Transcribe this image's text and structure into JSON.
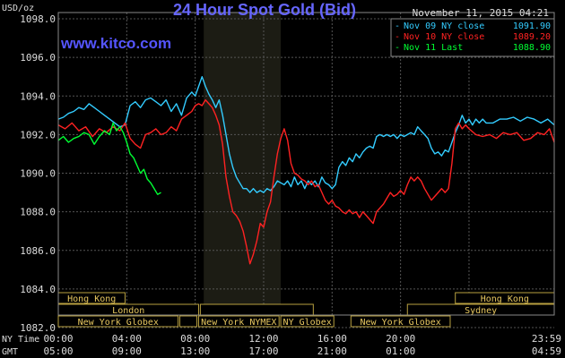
{
  "chart_data": {
    "type": "line",
    "title": "24 Hour Spot Gold (Bid)",
    "date": "November 11, 2015 04:21",
    "watermark": "www.kitco.com",
    "ylabel": "USD/oz",
    "ylim": [
      1082,
      1098
    ],
    "grid": true,
    "legend_position": "top-right",
    "y_ticks": [
      "1082.0",
      "1084.0",
      "1086.0",
      "1088.0",
      "1090.0",
      "1092.0",
      "1094.0",
      "1096.0",
      "1098.0"
    ],
    "x_range_hours": [
      0,
      28.98
    ],
    "x_axis_rows": [
      {
        "label": "NY Time",
        "ticks": [
          "00:00",
          "04:00",
          "08:00",
          "12:00",
          "16:00",
          "20:00",
          "23:59"
        ]
      },
      {
        "label": "GMT",
        "ticks": [
          "05:00",
          "09:00",
          "13:00",
          "17:00",
          "21:00",
          "01:00",
          "04:59"
        ]
      }
    ],
    "shaded_region_hours": [
      8.5,
      13
    ],
    "sessions": [
      {
        "rows": [
          {
            "name": "Hong Kong",
            "spans": [
              [
                0,
                3.9
              ]
            ]
          },
          {
            "name": "Hong Kong",
            "spans": [
              [
                23.2,
                28.98
              ]
            ]
          }
        ]
      },
      {
        "rows": [
          {
            "name": "London",
            "spans": [
              [
                0,
                8.2
              ],
              [
                8.3,
                14.9
              ]
            ]
          },
          {
            "name": "Sydney",
            "spans": [
              [
                20.4,
                28.98
              ]
            ]
          }
        ]
      },
      {
        "rows": [
          {
            "name": "New York Globex",
            "spans": [
              [
                0,
                7.0
              ],
              [
                7.1,
                8.1
              ]
            ]
          },
          {
            "name": "New York NYMEX",
            "spans": [
              [
                8.2,
                12.9
              ]
            ]
          },
          {
            "name": "NY Globex",
            "spans": [
              [
                13.0,
                16.1
              ]
            ]
          },
          {
            "name": "New York Globex",
            "spans": [
              [
                17.1,
                22.9
              ]
            ]
          }
        ]
      }
    ],
    "series": [
      {
        "name": "Nov 09 NY close",
        "value_label": "1091.90",
        "color": "#33ccff",
        "points": [
          [
            0,
            1092.8
          ],
          [
            0.3,
            1092.9
          ],
          [
            0.6,
            1093.1
          ],
          [
            0.9,
            1093.2
          ],
          [
            1.2,
            1093.4
          ],
          [
            1.5,
            1093.3
          ],
          [
            1.8,
            1093.6
          ],
          [
            2.1,
            1093.4
          ],
          [
            2.4,
            1093.2
          ],
          [
            2.7,
            1093.0
          ],
          [
            3.0,
            1092.8
          ],
          [
            3.3,
            1092.6
          ],
          [
            3.6,
            1092.4
          ],
          [
            3.9,
            1092.5
          ],
          [
            4.2,
            1093.5
          ],
          [
            4.5,
            1093.7
          ],
          [
            4.8,
            1093.4
          ],
          [
            5.1,
            1093.8
          ],
          [
            5.4,
            1093.9
          ],
          [
            5.7,
            1093.7
          ],
          [
            6.0,
            1093.5
          ],
          [
            6.3,
            1093.8
          ],
          [
            6.6,
            1093.2
          ],
          [
            6.9,
            1093.6
          ],
          [
            7.2,
            1093.0
          ],
          [
            7.5,
            1093.9
          ],
          [
            7.8,
            1094.2
          ],
          [
            8.0,
            1094.0
          ],
          [
            8.2,
            1094.5
          ],
          [
            8.4,
            1095.0
          ],
          [
            8.6,
            1094.5
          ],
          [
            8.8,
            1094.1
          ],
          [
            9.0,
            1093.8
          ],
          [
            9.2,
            1093.4
          ],
          [
            9.4,
            1093.8
          ],
          [
            9.6,
            1093.0
          ],
          [
            9.8,
            1092.0
          ],
          [
            10.0,
            1091.0
          ],
          [
            10.2,
            1090.3
          ],
          [
            10.4,
            1089.8
          ],
          [
            10.6,
            1089.5
          ],
          [
            10.8,
            1089.2
          ],
          [
            11.0,
            1089.2
          ],
          [
            11.2,
            1089.0
          ],
          [
            11.4,
            1089.2
          ],
          [
            11.6,
            1089.0
          ],
          [
            11.8,
            1089.1
          ],
          [
            12.0,
            1089.0
          ],
          [
            12.2,
            1089.2
          ],
          [
            12.4,
            1089.1
          ],
          [
            12.6,
            1089.3
          ],
          [
            12.8,
            1089.6
          ],
          [
            13.0,
            1089.5
          ],
          [
            13.2,
            1089.4
          ],
          [
            13.4,
            1089.6
          ],
          [
            13.6,
            1089.3
          ],
          [
            13.8,
            1089.8
          ],
          [
            14.0,
            1089.4
          ],
          [
            14.2,
            1089.6
          ],
          [
            14.4,
            1089.2
          ],
          [
            14.6,
            1089.6
          ],
          [
            14.8,
            1089.4
          ],
          [
            15.0,
            1089.6
          ],
          [
            15.2,
            1089.3
          ],
          [
            15.4,
            1089.8
          ],
          [
            15.6,
            1089.5
          ],
          [
            15.8,
            1089.4
          ],
          [
            16.0,
            1089.2
          ],
          [
            16.2,
            1089.4
          ],
          [
            16.4,
            1090.3
          ],
          [
            16.6,
            1090.6
          ],
          [
            16.8,
            1090.4
          ],
          [
            17.0,
            1090.8
          ],
          [
            17.2,
            1090.6
          ],
          [
            17.4,
            1091.0
          ],
          [
            17.6,
            1090.8
          ],
          [
            17.8,
            1091.1
          ],
          [
            18.0,
            1091.3
          ],
          [
            18.2,
            1091.4
          ],
          [
            18.4,
            1091.3
          ],
          [
            18.6,
            1091.9
          ],
          [
            18.8,
            1092.0
          ],
          [
            19.0,
            1091.9
          ],
          [
            19.2,
            1092.0
          ],
          [
            19.4,
            1091.9
          ],
          [
            19.6,
            1092.0
          ],
          [
            19.8,
            1091.8
          ],
          [
            20.0,
            1092.0
          ],
          [
            20.2,
            1091.9
          ],
          [
            20.4,
            1092.0
          ],
          [
            20.6,
            1092.1
          ],
          [
            20.8,
            1092.0
          ],
          [
            21.0,
            1092.4
          ],
          [
            21.2,
            1092.2
          ],
          [
            21.4,
            1092.0
          ],
          [
            21.6,
            1091.8
          ],
          [
            21.8,
            1091.3
          ],
          [
            22.0,
            1091.0
          ],
          [
            22.2,
            1091.1
          ],
          [
            22.4,
            1090.9
          ],
          [
            22.6,
            1091.2
          ],
          [
            22.8,
            1091.1
          ],
          [
            23.0,
            1091.6
          ],
          [
            23.2,
            1092.1
          ],
          [
            23.4,
            1092.5
          ],
          [
            23.6,
            1093.0
          ],
          [
            23.8,
            1092.6
          ],
          [
            24.0,
            1092.8
          ],
          [
            24.2,
            1092.5
          ],
          [
            24.4,
            1092.8
          ],
          [
            24.6,
            1092.6
          ],
          [
            24.8,
            1092.8
          ],
          [
            25.0,
            1092.6
          ],
          [
            25.4,
            1092.6
          ],
          [
            25.8,
            1092.8
          ],
          [
            26.2,
            1092.8
          ],
          [
            26.6,
            1092.9
          ],
          [
            27.0,
            1092.7
          ],
          [
            27.4,
            1092.9
          ],
          [
            27.8,
            1092.8
          ],
          [
            28.2,
            1092.6
          ],
          [
            28.6,
            1092.8
          ],
          [
            28.98,
            1092.5
          ]
        ]
      },
      {
        "name": "Nov 10 NY close",
        "value_label": "1089.20",
        "color": "#ff2222",
        "points": [
          [
            0,
            1092.5
          ],
          [
            0.4,
            1092.3
          ],
          [
            0.8,
            1092.6
          ],
          [
            1.2,
            1092.2
          ],
          [
            1.6,
            1092.4
          ],
          [
            2.0,
            1091.9
          ],
          [
            2.4,
            1092.3
          ],
          [
            2.8,
            1092.1
          ],
          [
            3.2,
            1092.4
          ],
          [
            3.6,
            1092.2
          ],
          [
            3.9,
            1092.6
          ],
          [
            4.2,
            1091.8
          ],
          [
            4.5,
            1091.5
          ],
          [
            4.8,
            1091.3
          ],
          [
            5.1,
            1092.0
          ],
          [
            5.4,
            1092.1
          ],
          [
            5.7,
            1092.3
          ],
          [
            6.0,
            1092.0
          ],
          [
            6.3,
            1092.1
          ],
          [
            6.6,
            1092.4
          ],
          [
            6.9,
            1092.2
          ],
          [
            7.2,
            1092.8
          ],
          [
            7.5,
            1093.0
          ],
          [
            7.8,
            1093.2
          ],
          [
            8.0,
            1093.5
          ],
          [
            8.2,
            1093.6
          ],
          [
            8.4,
            1093.5
          ],
          [
            8.6,
            1093.8
          ],
          [
            8.8,
            1093.6
          ],
          [
            9.0,
            1093.4
          ],
          [
            9.2,
            1093.0
          ],
          [
            9.4,
            1092.5
          ],
          [
            9.6,
            1091.5
          ],
          [
            9.8,
            1089.8
          ],
          [
            10.0,
            1088.8
          ],
          [
            10.2,
            1088.0
          ],
          [
            10.4,
            1087.8
          ],
          [
            10.6,
            1087.5
          ],
          [
            10.8,
            1087.0
          ],
          [
            11.0,
            1086.2
          ],
          [
            11.2,
            1085.3
          ],
          [
            11.4,
            1085.8
          ],
          [
            11.6,
            1086.5
          ],
          [
            11.8,
            1087.4
          ],
          [
            12.0,
            1087.2
          ],
          [
            12.2,
            1088.0
          ],
          [
            12.4,
            1088.5
          ],
          [
            12.6,
            1089.8
          ],
          [
            12.8,
            1091.0
          ],
          [
            13.0,
            1091.8
          ],
          [
            13.2,
            1092.3
          ],
          [
            13.4,
            1091.7
          ],
          [
            13.6,
            1090.5
          ],
          [
            13.8,
            1090.0
          ],
          [
            14.0,
            1089.9
          ],
          [
            14.2,
            1089.7
          ],
          [
            14.4,
            1089.6
          ],
          [
            14.6,
            1089.4
          ],
          [
            14.8,
            1089.6
          ],
          [
            15.0,
            1089.3
          ],
          [
            15.2,
            1089.4
          ],
          [
            15.4,
            1089.0
          ],
          [
            15.6,
            1088.6
          ],
          [
            15.8,
            1088.4
          ],
          [
            16.0,
            1088.6
          ],
          [
            16.2,
            1088.3
          ],
          [
            16.4,
            1088.2
          ],
          [
            16.6,
            1088.0
          ],
          [
            16.8,
            1087.9
          ],
          [
            17.0,
            1088.1
          ],
          [
            17.2,
            1087.9
          ],
          [
            17.4,
            1088.0
          ],
          [
            17.6,
            1087.7
          ],
          [
            17.8,
            1088.0
          ],
          [
            18.0,
            1087.8
          ],
          [
            18.2,
            1087.6
          ],
          [
            18.4,
            1087.4
          ],
          [
            18.6,
            1088.0
          ],
          [
            18.8,
            1088.2
          ],
          [
            19.0,
            1088.4
          ],
          [
            19.2,
            1088.7
          ],
          [
            19.4,
            1089.0
          ],
          [
            19.6,
            1088.8
          ],
          [
            19.8,
            1088.9
          ],
          [
            20.0,
            1089.1
          ],
          [
            20.2,
            1088.9
          ],
          [
            20.4,
            1089.4
          ],
          [
            20.6,
            1089.8
          ],
          [
            20.8,
            1089.6
          ],
          [
            21.0,
            1089.8
          ],
          [
            21.2,
            1089.6
          ],
          [
            21.4,
            1089.2
          ],
          [
            21.6,
            1088.9
          ],
          [
            21.8,
            1088.6
          ],
          [
            22.0,
            1088.8
          ],
          [
            22.2,
            1089.0
          ],
          [
            22.4,
            1089.2
          ],
          [
            22.6,
            1089.0
          ],
          [
            22.8,
            1089.2
          ],
          [
            23.0,
            1090.5
          ],
          [
            23.2,
            1092.3
          ],
          [
            23.4,
            1092.6
          ],
          [
            23.6,
            1092.3
          ],
          [
            23.8,
            1092.5
          ],
          [
            24.0,
            1092.3
          ],
          [
            24.4,
            1092.0
          ],
          [
            24.8,
            1091.9
          ],
          [
            25.2,
            1092.0
          ],
          [
            25.6,
            1091.8
          ],
          [
            26.0,
            1092.1
          ],
          [
            26.4,
            1092.0
          ],
          [
            26.8,
            1092.1
          ],
          [
            27.2,
            1091.7
          ],
          [
            27.6,
            1091.8
          ],
          [
            28.0,
            1092.1
          ],
          [
            28.4,
            1092.0
          ],
          [
            28.7,
            1092.3
          ],
          [
            28.98,
            1091.6
          ]
        ]
      },
      {
        "name": "Nov 11 Last",
        "value_label": "1088.90",
        "color": "#00ff33",
        "points": [
          [
            0,
            1091.7
          ],
          [
            0.3,
            1091.9
          ],
          [
            0.6,
            1091.6
          ],
          [
            0.9,
            1091.8
          ],
          [
            1.2,
            1091.9
          ],
          [
            1.5,
            1092.1
          ],
          [
            1.8,
            1092.0
          ],
          [
            2.1,
            1091.5
          ],
          [
            2.4,
            1091.9
          ],
          [
            2.7,
            1092.2
          ],
          [
            3.0,
            1092.0
          ],
          [
            3.2,
            1092.6
          ],
          [
            3.4,
            1092.2
          ],
          [
            3.6,
            1092.4
          ],
          [
            3.8,
            1092.1
          ],
          [
            4.0,
            1091.6
          ],
          [
            4.2,
            1091.0
          ],
          [
            4.4,
            1090.8
          ],
          [
            4.6,
            1090.4
          ],
          [
            4.8,
            1090.0
          ],
          [
            5.0,
            1090.2
          ],
          [
            5.2,
            1089.7
          ],
          [
            5.4,
            1089.5
          ],
          [
            5.6,
            1089.2
          ],
          [
            5.8,
            1088.9
          ],
          [
            6.0,
            1089.0
          ]
        ]
      }
    ]
  }
}
